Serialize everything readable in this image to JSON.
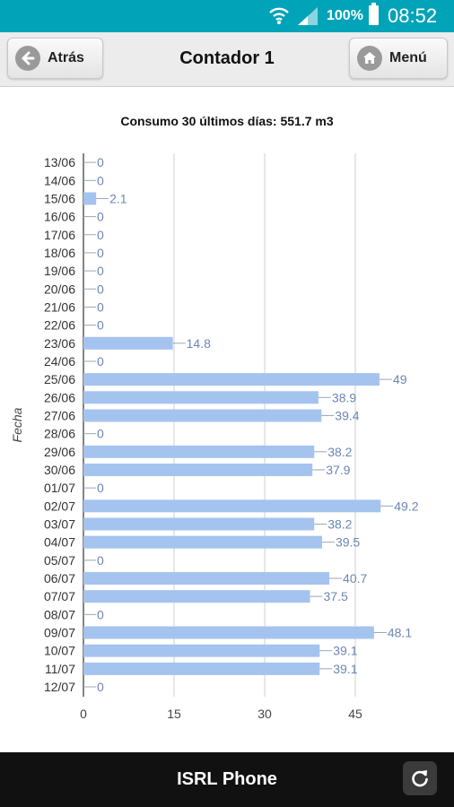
{
  "status_bar": {
    "battery": "100%",
    "time": "08:52"
  },
  "header": {
    "back_label": "Atrás",
    "title": "Contador 1",
    "menu_label": "Menú"
  },
  "footer": {
    "title": "ISRL Phone"
  },
  "colors": {
    "status_bar": "#00a3b8",
    "bar": "#a5c3ef",
    "label": "#6b86b5",
    "footer": "#111111"
  },
  "icons": {
    "back": "arrow-left-icon",
    "menu": "home-icon",
    "refresh": "refresh-icon"
  },
  "chart_data": {
    "type": "bar",
    "orientation": "horizontal",
    "title": "Consumo 30 últimos días: 551.7 m3",
    "ylabel": "Fecha",
    "xlabel": "",
    "xlim": [
      0,
      60
    ],
    "xticks": [
      0,
      15,
      30,
      45
    ],
    "grid": true,
    "categories": [
      "13/06",
      "14/06",
      "15/06",
      "16/06",
      "17/06",
      "18/06",
      "19/06",
      "20/06",
      "21/06",
      "22/06",
      "23/06",
      "24/06",
      "25/06",
      "26/06",
      "27/06",
      "28/06",
      "29/06",
      "30/06",
      "01/07",
      "02/07",
      "03/07",
      "04/07",
      "05/07",
      "06/07",
      "07/07",
      "08/07",
      "09/07",
      "10/07",
      "11/07",
      "12/07"
    ],
    "values": [
      0,
      0,
      2.1,
      0,
      0,
      0,
      0,
      0,
      0,
      0,
      14.8,
      0,
      49,
      38.9,
      39.4,
      0,
      38.2,
      37.9,
      0,
      49.2,
      38.2,
      39.5,
      0,
      40.7,
      37.5,
      0,
      48.1,
      39.1,
      39.1,
      0
    ]
  }
}
